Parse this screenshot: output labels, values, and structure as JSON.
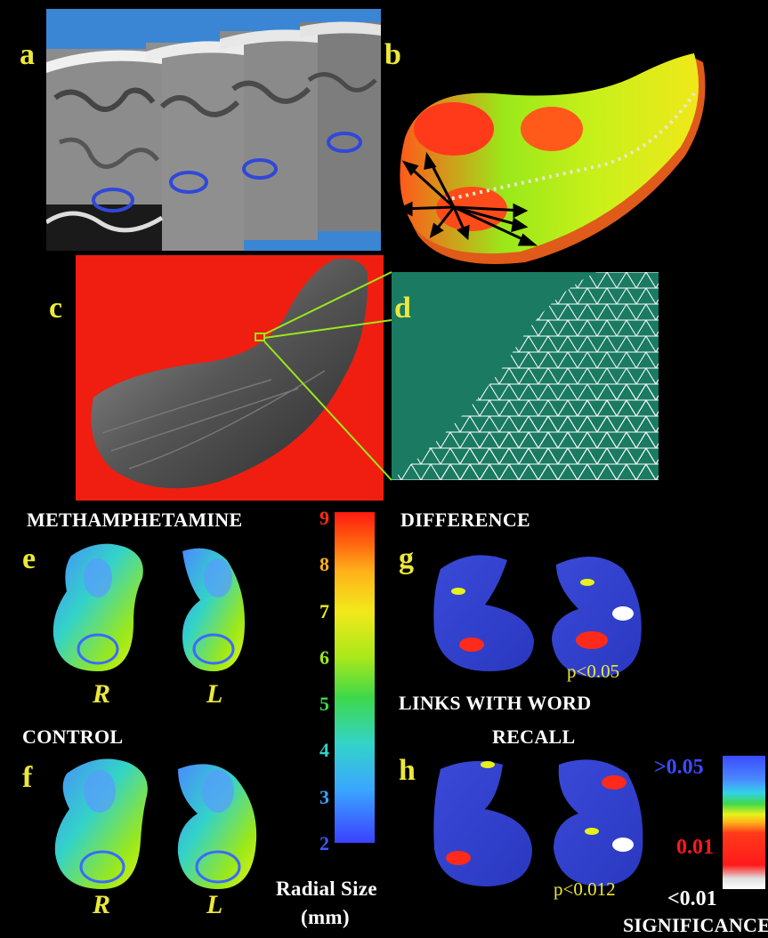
{
  "panels": {
    "a": "a",
    "b": "b",
    "c": "c",
    "d": "d",
    "e": "e",
    "f": "f",
    "g": "g",
    "h": "h"
  },
  "headings": {
    "methamphetamine": "METHAMPHETAMINE",
    "difference": "DIFFERENCE",
    "control": "CONTROL",
    "links_line1": "LINKS WITH WORD",
    "links_line2": "RECALL"
  },
  "hemispheres": {
    "right": "R",
    "left": "L"
  },
  "radial_scale": {
    "ticks": [
      "9",
      "8",
      "7",
      "6",
      "5",
      "4",
      "3",
      "2"
    ],
    "tick_colors": [
      "#ff2a1a",
      "#ffb21a",
      "#e8f21a",
      "#9ae81a",
      "#3ed84a",
      "#33d3c8",
      "#3aa6ff",
      "#3b5bff"
    ],
    "label_line1": "Radial Size",
    "label_line2": "(mm)"
  },
  "p_values": {
    "g": "p<0.05",
    "h": "p<0.012"
  },
  "significance": {
    "top": ">0.05",
    "mid": "0.01",
    "bottom": "<0.01",
    "label": "SIGNIFICANCE",
    "colors": {
      "top": "#3b4bff",
      "mid": "#ff1a1a",
      "bottom": "#ffffff"
    }
  }
}
